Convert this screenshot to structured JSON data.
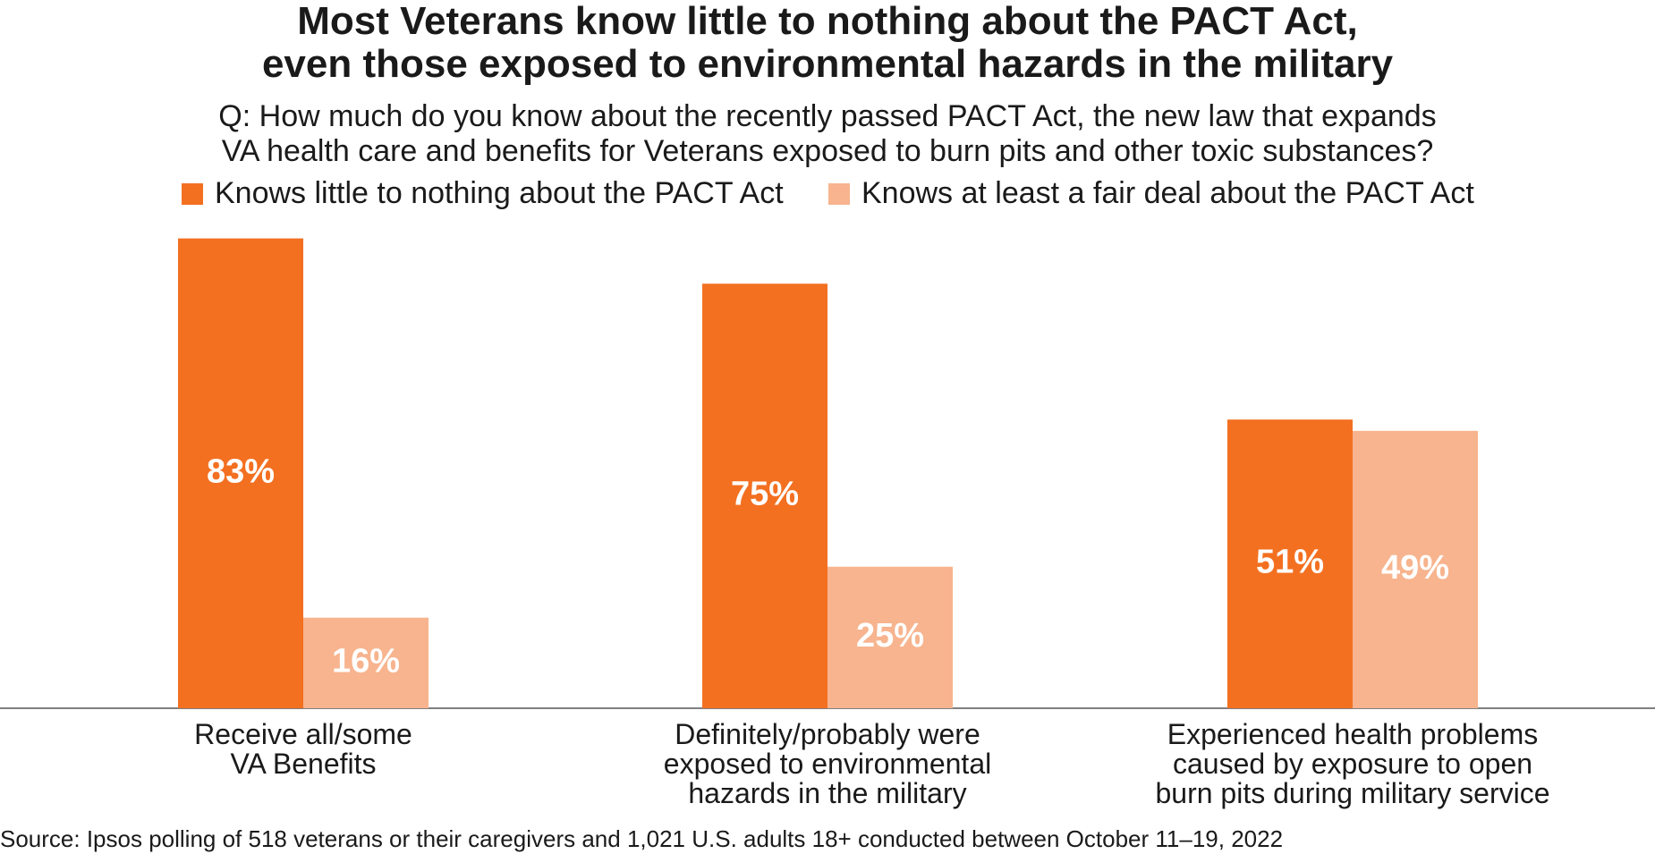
{
  "chart_data": {
    "type": "bar",
    "title": "Most Veterans know little to nothing about the PACT Act,\neven those exposed to environmental hazards in the military",
    "subtitle": "Q: How much do you know about the recently passed PACT Act, the new law that expands\nVA health care and benefits for Veterans exposed to burn pits and other toxic substances?",
    "categories": [
      "Receive all/some\nVA Benefits",
      "Definitely/probably were\nexposed to environmental\nhazards in the military",
      "Experienced health problems\ncaused by exposure to open\nburn pits during military service"
    ],
    "series": [
      {
        "name": "Knows little to nothing about the PACT Act",
        "color": "#f37021",
        "values": [
          83,
          75,
          51
        ],
        "value_labels": [
          "83%",
          "75%",
          "51%"
        ]
      },
      {
        "name": "Knows at least a fair deal about the PACT Act",
        "color": "#f7b48e",
        "values": [
          16,
          25,
          49
        ],
        "value_labels": [
          "16%",
          "25%",
          "49%"
        ]
      }
    ],
    "legend": "top",
    "source": "Source: Ipsos polling of 518 veterans or their caregivers and 1,021 U.S. adults 18+ conducted between October 11–19, 2022"
  }
}
